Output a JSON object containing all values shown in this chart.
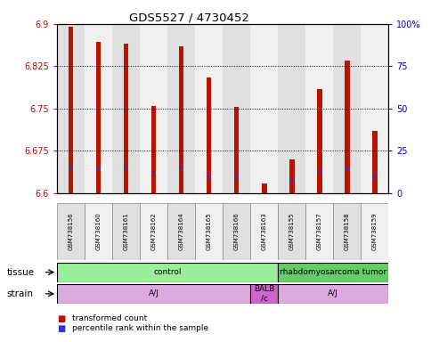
{
  "title": "GDS5527 / 4730452",
  "samples": [
    "GSM738156",
    "GSM738160",
    "GSM738161",
    "GSM738162",
    "GSM738164",
    "GSM738165",
    "GSM738166",
    "GSM738163",
    "GSM738155",
    "GSM738157",
    "GSM738158",
    "GSM738159"
  ],
  "transformed_count": [
    6.895,
    6.868,
    6.865,
    6.755,
    6.86,
    6.805,
    6.753,
    6.618,
    6.66,
    6.785,
    6.835,
    6.71
  ],
  "percentile_rank": [
    15,
    14,
    15,
    12,
    15,
    10,
    10,
    5,
    8,
    13,
    14,
    10
  ],
  "ymin": 6.6,
  "ymax": 6.9,
  "yticks": [
    6.6,
    6.675,
    6.75,
    6.825,
    6.9
  ],
  "ytick_labels": [
    "6.6",
    "6.675",
    "6.75",
    "6.825",
    "6.9"
  ],
  "right_yticks": [
    0,
    25,
    50,
    75,
    100
  ],
  "right_ytick_labels": [
    "0",
    "25",
    "50",
    "75",
    "100%"
  ],
  "bar_color": "#bb1100",
  "blue_color": "#3333cc",
  "bar_width": 0.18,
  "tissue_groups": [
    {
      "label": "control",
      "start": 0,
      "end": 8,
      "color": "#99ee99"
    },
    {
      "label": "rhabdomyosarcoma tumor",
      "start": 8,
      "end": 12,
      "color": "#66cc66"
    }
  ],
  "strain_groups": [
    {
      "label": "A/J",
      "start": 0,
      "end": 7,
      "color": "#ddaadd"
    },
    {
      "label": "BALB\n/c",
      "start": 7,
      "end": 8,
      "color": "#cc66cc"
    },
    {
      "label": "A/J",
      "start": 8,
      "end": 12,
      "color": "#ddaadd"
    }
  ],
  "legend_items": [
    {
      "color": "#bb1100",
      "label": "transformed count"
    },
    {
      "color": "#3333cc",
      "label": "percentile rank within the sample"
    }
  ],
  "tissue_label": "tissue",
  "strain_label": "strain",
  "left_axis_color": "#cc0000",
  "right_axis_color": "#0000cc",
  "col_bg_even": "#e0e0e0",
  "col_bg_odd": "#f0f0f0"
}
